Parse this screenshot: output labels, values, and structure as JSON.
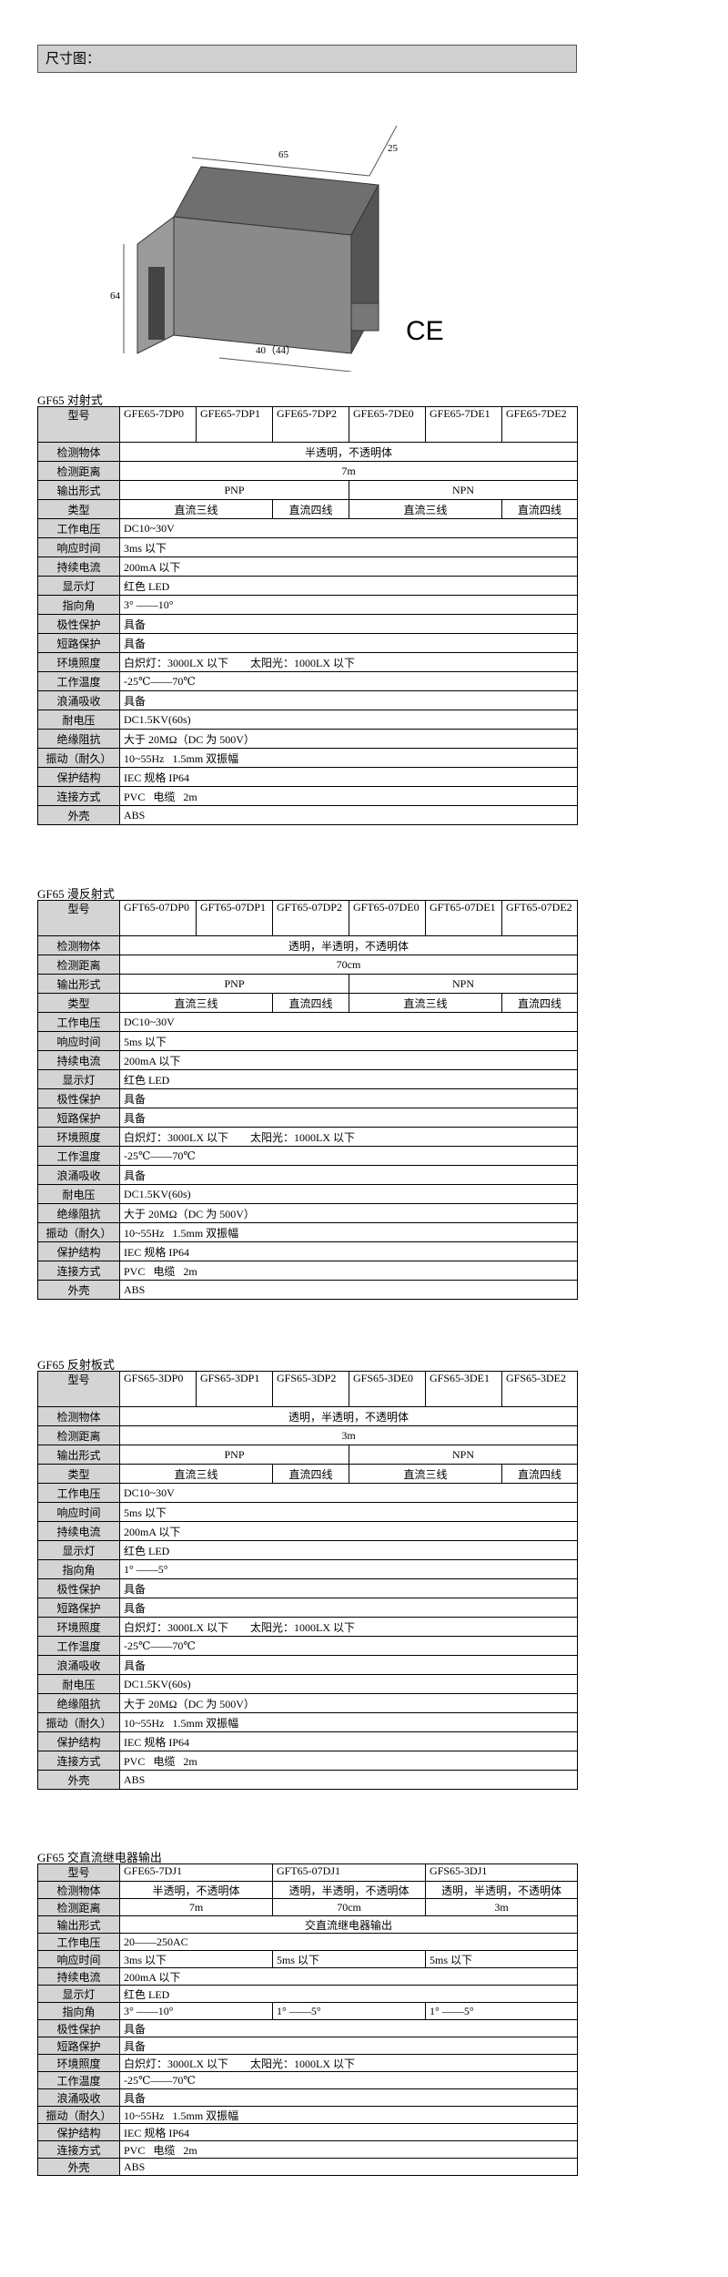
{
  "header": {
    "title": "尺寸图："
  },
  "figure": {
    "dims": [
      "65",
      "25",
      "64",
      "40（44）"
    ],
    "mark": "CE"
  },
  "tables": [
    {
      "title": "GF65 对射式",
      "rows": [
        [
          "型号",
          "GFE65-7DP0",
          "GFE65-7DP1",
          "GFE65-7DP2",
          "GFE65-7DE0",
          "GFE65-7DE1",
          "GFE65-7DE2"
        ],
        [
          "检测物体",
          "半透明，不透明体"
        ],
        [
          "检测距离",
          "7m"
        ],
        [
          "输出形式",
          "PNP",
          "NPN"
        ],
        [
          "类型",
          "直流三线",
          "直流四线",
          "直流三线",
          "直流四线"
        ],
        [
          "工作电压",
          "DC10~30V"
        ],
        [
          "响应时间",
          "3ms 以下"
        ],
        [
          "持续电流",
          "200mA 以下"
        ],
        [
          "显示灯",
          "红色 LED"
        ],
        [
          "指向角",
          "3° ——10°"
        ],
        [
          "极性保护",
          "具备"
        ],
        [
          "短路保护",
          "具备"
        ],
        [
          "环境照度",
          "白炽灯：3000LX 以下        太阳光：1000LX 以下"
        ],
        [
          "工作温度",
          "-25℃——70℃"
        ],
        [
          "浪涌吸收",
          "具备"
        ],
        [
          "耐电压",
          "DC1.5KV(60s)"
        ],
        [
          "绝缘阻抗",
          "大于 20MΩ（DC 为 500V）"
        ],
        [
          "振动（耐久）",
          "10~55Hz   1.5mm 双振幅"
        ],
        [
          "保护结构",
          "IEC 规格 IP64"
        ],
        [
          "连接方式",
          "PVC   电缆   2m"
        ],
        [
          "外壳",
          "ABS"
        ]
      ]
    },
    {
      "title": "GF65 漫反射式",
      "rows": [
        [
          "型号",
          "GFT65-07DP0",
          "GFT65-07DP1",
          "GFT65-07DP2",
          "GFT65-07DE0",
          "GFT65-07DE1",
          "GFT65-07DE2"
        ],
        [
          "检测物体",
          "透明，半透明，不透明体"
        ],
        [
          "检测距离",
          "70cm"
        ],
        [
          "输出形式",
          "PNP",
          "NPN"
        ],
        [
          "类型",
          "直流三线",
          "直流四线",
          "直流三线",
          "直流四线"
        ],
        [
          "工作电压",
          "DC10~30V"
        ],
        [
          "响应时间",
          "5ms 以下"
        ],
        [
          "持续电流",
          "200mA 以下"
        ],
        [
          "显示灯",
          "红色 LED"
        ],
        [
          "极性保护",
          "具备"
        ],
        [
          "短路保护",
          "具备"
        ],
        [
          "环境照度",
          "白炽灯：3000LX 以下        太阳光：1000LX 以下"
        ],
        [
          "工作温度",
          "-25℃——70℃"
        ],
        [
          "浪涌吸收",
          "具备"
        ],
        [
          "耐电压",
          "DC1.5KV(60s)"
        ],
        [
          "绝缘阻抗",
          "大于 20MΩ（DC 为 500V）"
        ],
        [
          "振动（耐久）",
          "10~55Hz   1.5mm 双振幅"
        ],
        [
          "保护结构",
          "IEC 规格 IP64"
        ],
        [
          "连接方式",
          "PVC   电缆   2m"
        ],
        [
          "外壳",
          "ABS"
        ]
      ]
    },
    {
      "title": "GF65 反射板式",
      "rows": [
        [
          "型号",
          "GFS65-3DP0",
          "GFS65-3DP1",
          "GFS65-3DP2",
          "GFS65-3DE0",
          "GFS65-3DE1",
          "GFS65-3DE2"
        ],
        [
          "检测物体",
          "透明，半透明，不透明体"
        ],
        [
          "检测距离",
          "3m"
        ],
        [
          "输出形式",
          "PNP",
          "NPN"
        ],
        [
          "类型",
          "直流三线",
          "直流四线",
          "直流三线",
          "直流四线"
        ],
        [
          "工作电压",
          "DC10~30V"
        ],
        [
          "响应时间",
          "5ms 以下"
        ],
        [
          "持续电流",
          "200mA 以下"
        ],
        [
          "显示灯",
          "红色 LED"
        ],
        [
          "指向角",
          "1° ——5°"
        ],
        [
          "极性保护",
          "具备"
        ],
        [
          "短路保护",
          "具备"
        ],
        [
          "环境照度",
          "白炽灯：3000LX 以下        太阳光：1000LX 以下"
        ],
        [
          "工作温度",
          "-25℃——70℃"
        ],
        [
          "浪涌吸收",
          "具备"
        ],
        [
          "耐电压",
          "DC1.5KV(60s)"
        ],
        [
          "绝缘阻抗",
          "大于 20MΩ（DC 为 500V）"
        ],
        [
          "振动（耐久）",
          "10~55Hz   1.5mm 双振幅"
        ],
        [
          "保护结构",
          "IEC 规格 IP64"
        ],
        [
          "连接方式",
          "PVC   电缆   2m"
        ],
        [
          "外壳",
          "ABS"
        ]
      ]
    },
    {
      "title": "GF65 交直流继电器输出",
      "rows": [
        [
          "型号",
          "GFE65-7DJ1",
          "GFT65-07DJ1",
          "GFS65-3DJ1"
        ],
        [
          "检测物体",
          "半透明，不透明体",
          "透明，半透明，不透明体",
          "透明，半透明，不透明体"
        ],
        [
          "检测距离",
          "7m",
          "70cm",
          "3m"
        ],
        [
          "输出形式",
          "交直流继电器输出"
        ],
        [
          "工作电压",
          "20——250AC"
        ],
        [
          "响应时间",
          "3ms 以下",
          "5ms 以下",
          "5ms 以下"
        ],
        [
          "持续电流",
          "200mA 以下"
        ],
        [
          "显示灯",
          "红色 LED"
        ],
        [
          "指向角",
          "3° ——10°",
          "1° ——5°",
          "1° ——5°"
        ],
        [
          "极性保护",
          "具备"
        ],
        [
          "短路保护",
          "具备"
        ],
        [
          "环境照度",
          "白炽灯：3000LX 以下        太阳光：1000LX 以下"
        ],
        [
          "工作温度",
          "-25℃——70℃"
        ],
        [
          "浪涌吸收",
          "具备"
        ],
        [
          "振动（耐久）",
          "10~55Hz   1.5mm 双振幅"
        ],
        [
          "保护结构",
          "IEC 规格 IP64"
        ],
        [
          "连接方式",
          "PVC   电缆   2m"
        ],
        [
          "外壳",
          "ABS"
        ]
      ]
    }
  ]
}
